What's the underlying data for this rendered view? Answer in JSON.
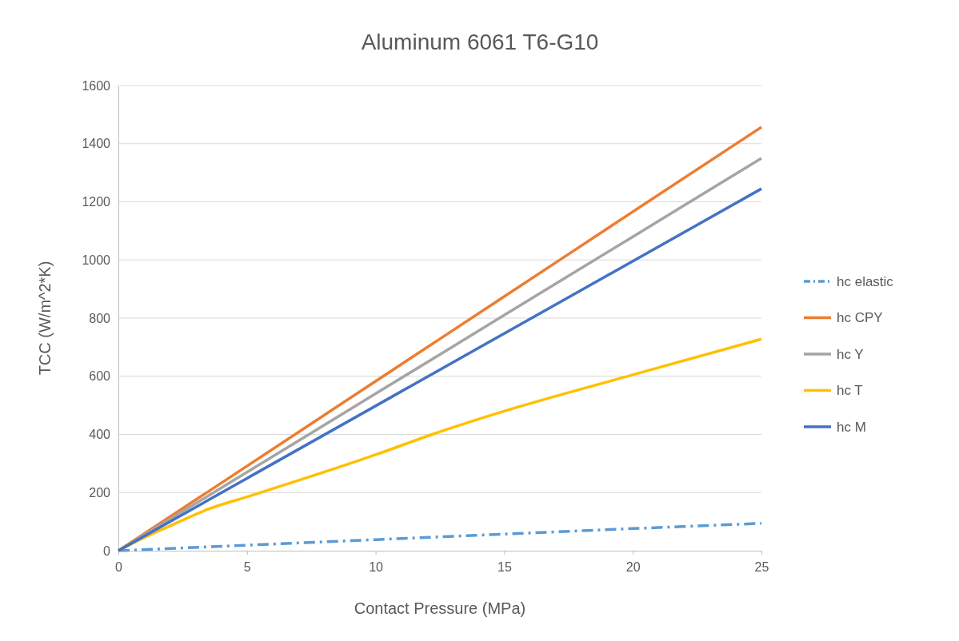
{
  "chart_data": {
    "type": "line",
    "title": "Aluminum 6061 T6-G10",
    "xlabel": "Contact Pressure (MPa)",
    "ylabel": "TCC (W/m^2*K)",
    "xlim": [
      0,
      25
    ],
    "xticks": [
      0,
      5,
      10,
      15,
      20,
      25
    ],
    "ylim": [
      0,
      1600
    ],
    "yticks": [
      0,
      200,
      400,
      600,
      800,
      1000,
      1200,
      1400,
      1600
    ],
    "grid": "y",
    "legend": "right",
    "marker": "none",
    "series": [
      {
        "name": "hc elastic",
        "color": "#5b9bd5",
        "line_style": "dashed",
        "x": [
          0,
          5,
          10,
          15,
          20,
          25
        ],
        "values": [
          0,
          19,
          38,
          57,
          76,
          94
        ]
      },
      {
        "name": "hc CPY",
        "color": "#ed7d31",
        "line_style": "solid",
        "x": [
          0,
          5,
          10,
          15,
          20,
          25
        ],
        "values": [
          0,
          291,
          583,
          874,
          1166,
          1457
        ]
      },
      {
        "name": "hc Y",
        "color": "#a5a5a5",
        "line_style": "solid",
        "x": [
          0,
          5,
          10,
          15,
          20,
          25
        ],
        "values": [
          0,
          270,
          540,
          810,
          1080,
          1350
        ]
      },
      {
        "name": "hc T",
        "color": "#ffc000",
        "line_style": "solid",
        "x": [
          0,
          1,
          2,
          3,
          3.5,
          5,
          10,
          12.2,
          15,
          20,
          25
        ],
        "values": [
          0,
          45,
          85,
          125,
          143,
          185,
          330,
          400,
          480,
          605,
          728
        ]
      },
      {
        "name": "hc M",
        "color": "#4472c4",
        "line_style": "solid",
        "x": [
          0,
          5,
          10,
          15,
          20,
          25
        ],
        "values": [
          0,
          249,
          498,
          747,
          996,
          1245
        ]
      }
    ]
  }
}
